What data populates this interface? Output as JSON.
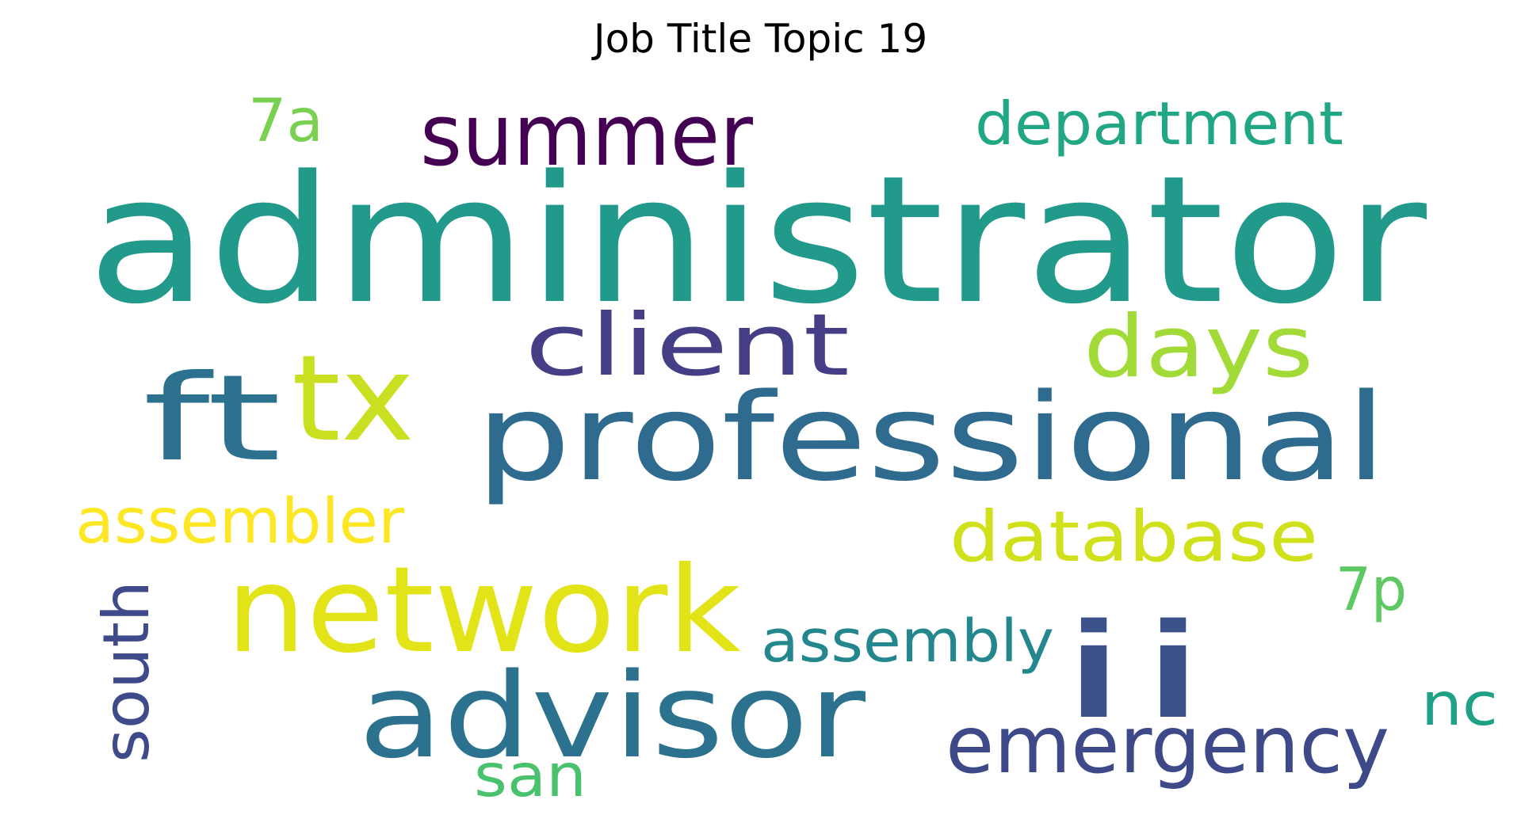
{
  "chart_data": {
    "type": "wordcloud",
    "title": "Job Title Topic 19",
    "colormap": "viridis",
    "words": [
      {
        "text": "administrator",
        "color": "#21998b"
      },
      {
        "text": "professional",
        "color": "#2f6b8e"
      },
      {
        "text": "network",
        "color": "#e2e418"
      },
      {
        "text": "advisor",
        "color": "#2c718e"
      },
      {
        "text": "summer",
        "color": "#440154"
      },
      {
        "text": "client",
        "color": "#433e85"
      },
      {
        "text": "days",
        "color": "#a2da37"
      },
      {
        "text": "ft",
        "color": "#2c718e"
      },
      {
        "text": "tx",
        "color": "#c8e020"
      },
      {
        "text": "ii",
        "color": "#3b528b"
      },
      {
        "text": "emergency",
        "color": "#3e4989"
      },
      {
        "text": "database",
        "color": "#d0e11c"
      },
      {
        "text": "department",
        "color": "#22a785"
      },
      {
        "text": "assembler",
        "color": "#fde725"
      },
      {
        "text": "assembly",
        "color": "#24878e"
      },
      {
        "text": "south",
        "color": "#3e4a89"
      },
      {
        "text": "7a",
        "color": "#7ad151"
      },
      {
        "text": "7p",
        "color": "#5ec962"
      },
      {
        "text": "san",
        "color": "#4ac16d"
      },
      {
        "text": "nc",
        "color": "#1fa187"
      }
    ]
  }
}
